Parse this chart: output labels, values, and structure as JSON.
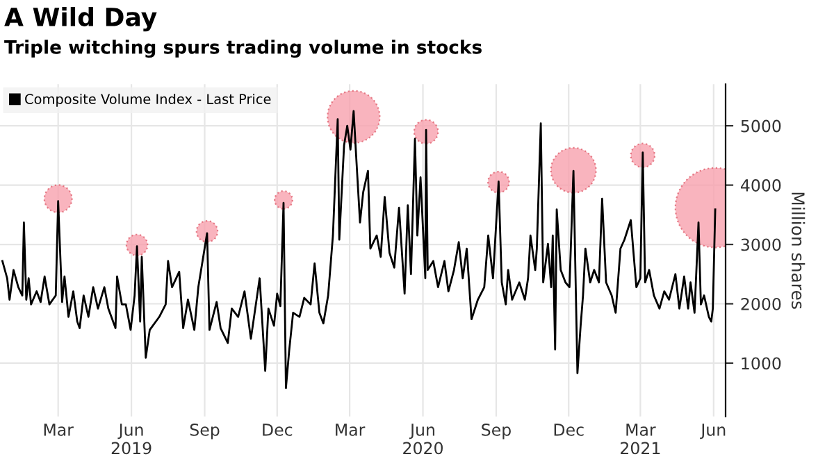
{
  "chart_data": {
    "type": "line",
    "title": "A Wild Day",
    "subtitle": "Triple witching spurs trading volume in stocks",
    "ylabel": "Million shares",
    "xlim": [
      "2019-01-01",
      "2021-06-30"
    ],
    "ylim": [
      100,
      5700
    ],
    "xticks": [
      {
        "value": "2019-03-15",
        "label": "Mar"
      },
      {
        "value": "2019-06-15",
        "label": "Jun\n2019"
      },
      {
        "value": "2019-09-15",
        "label": "Sep"
      },
      {
        "value": "2019-12-15",
        "label": "Dec"
      },
      {
        "value": "2020-03-15",
        "label": "Mar"
      },
      {
        "value": "2020-06-15",
        "label": "Jun\n2020"
      },
      {
        "value": "2020-09-15",
        "label": "Sep"
      },
      {
        "value": "2020-12-15",
        "label": "Dec"
      },
      {
        "value": "2021-03-15",
        "label": "Mar\n2021"
      },
      {
        "value": "2021-06-15",
        "label": "Jun"
      }
    ],
    "yticks": [
      1000,
      2000,
      3000,
      4000,
      5000
    ],
    "grid": true,
    "legend": "top left",
    "series": [
      {
        "name": "Composite Volume Index - Last Price",
        "color": "#000000",
        "x": [
          "2019-01-04",
          "2019-01-10",
          "2019-01-13",
          "2019-01-18",
          "2019-01-24",
          "2019-01-29",
          "2019-01-31",
          "2019-02-03",
          "2019-02-06",
          "2019-02-09",
          "2019-02-16",
          "2019-02-21",
          "2019-02-26",
          "2019-03-04",
          "2019-03-12",
          "2019-03-15",
          "2019-03-20",
          "2019-03-23",
          "2019-03-28",
          "2019-04-03",
          "2019-04-08",
          "2019-04-11",
          "2019-04-16",
          "2019-04-22",
          "2019-04-28",
          "2019-05-04",
          "2019-05-12",
          "2019-05-17",
          "2019-05-26",
          "2019-05-28",
          "2019-06-03",
          "2019-06-08",
          "2019-06-14",
          "2019-06-19",
          "2019-06-22",
          "2019-06-26",
          "2019-06-28",
          "2019-07-03",
          "2019-07-08",
          "2019-07-20",
          "2019-07-28",
          "2019-07-31",
          "2019-08-05",
          "2019-08-14",
          "2019-08-19",
          "2019-08-25",
          "2019-09-02",
          "2019-09-07",
          "2019-09-18",
          "2019-09-21",
          "2019-09-30",
          "2019-10-05",
          "2019-10-14",
          "2019-10-19",
          "2019-10-27",
          "2019-11-04",
          "2019-11-12",
          "2019-11-23",
          "2019-11-30",
          "2019-12-04",
          "2019-12-11",
          "2019-12-15",
          "2019-12-19",
          "2019-12-23",
          "2019-12-26",
          "2019-12-30",
          "2020-01-04",
          "2020-01-12",
          "2020-01-18",
          "2020-01-26",
          "2020-01-31",
          "2020-02-06",
          "2020-02-11",
          "2020-02-17",
          "2020-02-23",
          "2020-02-29",
          "2020-03-02",
          "2020-03-05",
          "2020-03-08",
          "2020-03-12",
          "2020-03-16",
          "2020-03-20",
          "2020-03-23",
          "2020-03-28",
          "2020-04-01",
          "2020-04-07",
          "2020-04-10",
          "2020-04-18",
          "2020-04-23",
          "2020-04-28",
          "2020-05-04",
          "2020-05-10",
          "2020-05-16",
          "2020-05-23",
          "2020-05-27",
          "2020-05-31",
          "2020-06-05",
          "2020-06-08",
          "2020-06-12",
          "2020-06-18",
          "2020-06-19",
          "2020-06-21",
          "2020-06-28",
          "2020-07-04",
          "2020-07-12",
          "2020-07-17",
          "2020-07-24",
          "2020-07-30",
          "2020-08-04",
          "2020-08-09",
          "2020-08-15",
          "2020-08-23",
          "2020-08-31",
          "2020-09-05",
          "2020-09-11",
          "2020-09-18",
          "2020-09-22",
          "2020-09-27",
          "2020-09-30",
          "2020-10-05",
          "2020-10-14",
          "2020-10-21",
          "2020-10-25",
          "2020-10-28",
          "2020-11-03",
          "2020-11-05",
          "2020-11-10",
          "2020-11-13",
          "2020-11-19",
          "2020-11-23",
          "2020-11-25",
          "2020-11-28",
          "2020-11-30",
          "2020-12-05",
          "2020-12-11",
          "2020-12-16",
          "2020-12-21",
          "2020-12-26",
          "2020-12-30",
          "2021-01-02",
          "2021-01-05",
          "2021-01-11",
          "2021-01-16",
          "2021-01-22",
          "2021-01-26",
          "2021-01-31",
          "2021-02-07",
          "2021-02-12",
          "2021-02-18",
          "2021-02-23",
          "2021-03-03",
          "2021-03-10",
          "2021-03-15",
          "2021-03-18",
          "2021-03-21",
          "2021-03-26",
          "2021-04-01",
          "2021-04-08",
          "2021-04-14",
          "2021-04-20",
          "2021-04-28",
          "2021-05-03",
          "2021-05-09",
          "2021-05-14",
          "2021-05-17",
          "2021-05-22",
          "2021-05-27",
          "2021-05-30",
          "2021-06-03",
          "2021-06-09",
          "2021-06-12",
          "2021-06-14",
          "2021-06-17"
        ],
        "values": [
          2720,
          2430,
          2070,
          2570,
          2280,
          2140,
          3370,
          2070,
          2430,
          1990,
          2210,
          2030,
          2460,
          1990,
          2140,
          3730,
          2030,
          2460,
          1780,
          2210,
          1700,
          1590,
          2140,
          1780,
          2280,
          1920,
          2280,
          1920,
          1590,
          2460,
          1990,
          1990,
          1560,
          2140,
          2970,
          1700,
          2790,
          1090,
          1560,
          1780,
          1990,
          2720,
          2280,
          2540,
          1590,
          2070,
          1560,
          2280,
          3190,
          1560,
          2030,
          1590,
          1340,
          1920,
          1780,
          2210,
          1410,
          2430,
          870,
          1920,
          1630,
          2170,
          1960,
          3700,
          580,
          1200,
          1850,
          1780,
          2100,
          1990,
          2680,
          1850,
          1670,
          2140,
          3150,
          5110,
          3080,
          3880,
          4670,
          5000,
          4600,
          5250,
          4530,
          3370,
          3880,
          4240,
          2930,
          3150,
          2790,
          3800,
          2860,
          2610,
          3620,
          2170,
          3660,
          2500,
          4780,
          3150,
          4130,
          2430,
          4930,
          2570,
          2720,
          2280,
          2720,
          2210,
          2570,
          3040,
          2430,
          2930,
          1740,
          2070,
          2280,
          3150,
          2430,
          4060,
          2360,
          1990,
          2570,
          2070,
          2360,
          2070,
          2430,
          3150,
          2570,
          2930,
          5040,
          2360,
          3010,
          2280,
          3150,
          1230,
          3590,
          2570,
          2360,
          2280,
          4240,
          830,
          1630,
          2140,
          2930,
          2360,
          2570,
          2360,
          3770,
          2360,
          2140,
          1850,
          2930,
          3080,
          3410,
          2280,
          2430,
          4550,
          2360,
          2570,
          2140,
          1920,
          2210,
          2070,
          2500,
          1920,
          2460,
          1920,
          2360,
          1850,
          3370,
          1990,
          2140,
          1780,
          1700,
          1920,
          3590
        ]
      },
      {
        "type": "bubble",
        "color": "#f7a1ae",
        "x": [
          "2019-03-15",
          "2019-06-22",
          "2019-09-18",
          "2019-12-23",
          "2020-03-20",
          "2020-06-19",
          "2020-09-18",
          "2020-12-21",
          "2021-03-18",
          "2021-06-17"
        ],
        "values": [
          3770,
          2990,
          3220,
          3750,
          5150,
          4900,
          4050,
          4250,
          4500,
          3620
        ],
        "sizes": [
          0.12,
          0.07,
          0.07,
          0.05,
          0.43,
          0.09,
          0.07,
          0.32,
          0.09,
          1
        ]
      }
    ]
  }
}
